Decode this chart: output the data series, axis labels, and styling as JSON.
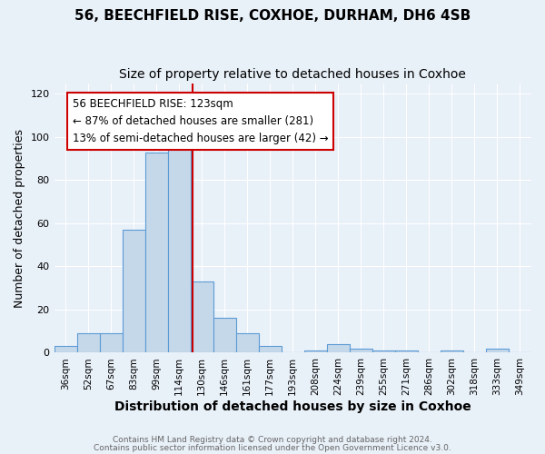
{
  "title": "56, BEECHFIELD RISE, COXHOE, DURHAM, DH6 4SB",
  "subtitle": "Size of property relative to detached houses in Coxhoe",
  "xlabel": "Distribution of detached houses by size in Coxhoe",
  "ylabel": "Number of detached properties",
  "categories": [
    "36sqm",
    "52sqm",
    "67sqm",
    "83sqm",
    "99sqm",
    "114sqm",
    "130sqm",
    "146sqm",
    "161sqm",
    "177sqm",
    "193sqm",
    "208sqm",
    "224sqm",
    "239sqm",
    "255sqm",
    "271sqm",
    "286sqm",
    "302sqm",
    "318sqm",
    "333sqm",
    "349sqm"
  ],
  "values": [
    3,
    9,
    9,
    57,
    93,
    96,
    33,
    16,
    9,
    3,
    0,
    1,
    4,
    2,
    1,
    1,
    0,
    1,
    0,
    2,
    0
  ],
  "bar_color": "#c5d8ea",
  "bar_edge_color": "#5b9bd5",
  "ref_line_color": "#cc0000",
  "ref_line_x": 5.6,
  "annotation_text": "56 BEECHFIELD RISE: 123sqm\n← 87% of detached houses are smaller (281)\n13% of semi-detached houses are larger (42) →",
  "annotation_box_color": "white",
  "annotation_box_edge": "#cc0000",
  "ylim": [
    0,
    125
  ],
  "yticks": [
    0,
    20,
    40,
    60,
    80,
    100,
    120
  ],
  "background_color": "#e8f0f8",
  "footer1": "Contains HM Land Registry data © Crown copyright and database right 2024.",
  "footer2": "Contains public sector information licensed under the Open Government Licence v3.0.",
  "title_fontsize": 11,
  "subtitle_fontsize": 10,
  "ylabel_fontsize": 9,
  "xlabel_fontsize": 10,
  "tick_fontsize": 7.5,
  "annot_fontsize": 8.5
}
